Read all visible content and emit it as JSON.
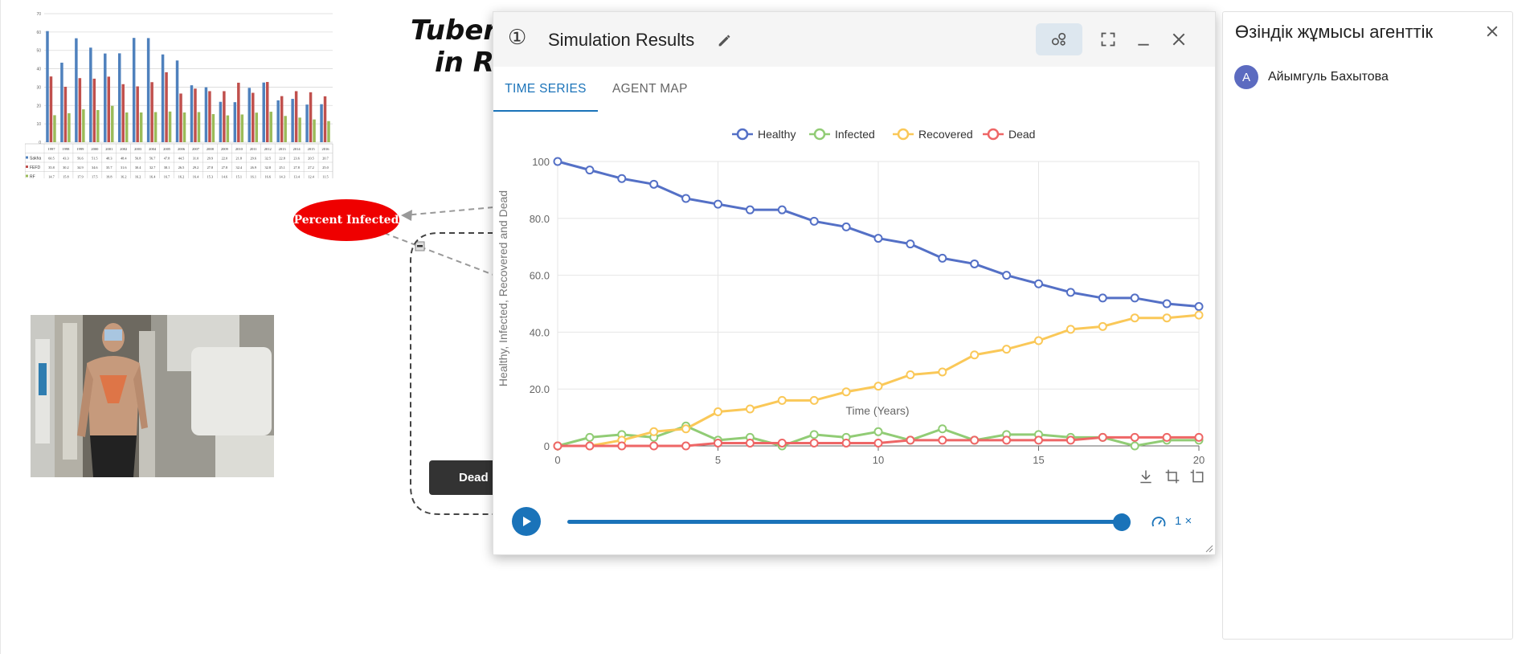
{
  "background": {
    "title_line1": "Tuberc",
    "title_line2": "in Ru",
    "percent_infected_node": "Percent Infected",
    "dead_node": "Dead",
    "mini_chart": {
      "y_ticks": [
        "70",
        "60",
        "50",
        "40",
        "30",
        "20",
        "10",
        "0"
      ],
      "years": [
        "1997",
        "1998",
        "1999",
        "2000",
        "2001",
        "2002",
        "2003",
        "2004",
        "2005",
        "2006",
        "2007",
        "2008",
        "2009",
        "2010",
        "2011",
        "2012",
        "2013",
        "2014",
        "2015",
        "2016"
      ],
      "series": [
        {
          "name": "Sakha",
          "color": "#4f81bd",
          "values": [
            60.5,
            43.3,
            56.6,
            51.5,
            48.3,
            48.4,
            56.8,
            56.7,
            47.8,
            44.5,
            31.0,
            29.9,
            22.0,
            21.8,
            29.6,
            32.5,
            22.8,
            23.6,
            20.5,
            20.7
          ]
        },
        {
          "name": "FEFD",
          "color": "#c0504d",
          "values": [
            35.8,
            30.2,
            34.9,
            34.6,
            35.7,
            31.6,
            30.4,
            32.7,
            38.1,
            26.5,
            29.2,
            27.8,
            27.8,
            32.4,
            26.9,
            32.8,
            25.1,
            27.8,
            27.2,
            25.0
          ]
        },
        {
          "name": "RF",
          "color": "#9bbb59",
          "values": [
            14.7,
            15.8,
            17.9,
            17.5,
            19.8,
            16.2,
            16.2,
            16.4,
            16.7,
            16.2,
            16.4,
            15.3,
            14.6,
            15.1,
            16.1,
            16.6,
            14.3,
            13.4,
            12.4,
            11.5
          ]
        }
      ]
    }
  },
  "sim_window": {
    "number": "①",
    "title": "Simulation Results",
    "tabs": [
      {
        "label": "TIME SERIES",
        "active": true
      },
      {
        "label": "AGENT MAP",
        "active": false
      }
    ],
    "speed_label": "1 ×",
    "playback_progress": 1.0
  },
  "chart_data": {
    "type": "line",
    "xlabel": "Time (Years)",
    "ylabel": "Healthy, Infected, Recovered and Dead",
    "xlim": [
      0,
      20
    ],
    "ylim": [
      0,
      100
    ],
    "x_ticks": [
      0,
      5,
      10,
      15,
      20
    ],
    "x_tick_labels": [
      "0",
      "5",
      "10",
      "15",
      "20"
    ],
    "y_ticks": [
      0,
      20,
      40,
      60,
      80,
      100
    ],
    "y_tick_labels": [
      "0",
      "20.0",
      "40.0",
      "60.0",
      "80.0",
      "100"
    ],
    "legend_position": "top",
    "grid": true,
    "x": [
      0,
      1,
      2,
      3,
      4,
      5,
      6,
      7,
      8,
      9,
      10,
      11,
      12,
      13,
      14,
      15,
      16,
      17,
      18,
      19,
      20
    ],
    "series": [
      {
        "name": "Healthy",
        "color": "#5470c6",
        "values": [
          100,
          97,
          94,
          92,
          87,
          85,
          83,
          83,
          79,
          77,
          73,
          71,
          66,
          64,
          60,
          57,
          54,
          52,
          52,
          50,
          49
        ]
      },
      {
        "name": "Infected",
        "color": "#91cc75",
        "values": [
          0,
          3,
          4,
          3,
          7,
          2,
          3,
          0,
          4,
          3,
          5,
          2,
          6,
          2,
          4,
          4,
          3,
          3,
          0,
          2,
          2
        ]
      },
      {
        "name": "Recovered",
        "color": "#fac858",
        "values": [
          0,
          0,
          2,
          5,
          6,
          12,
          13,
          16,
          16,
          19,
          21,
          25,
          26,
          32,
          34,
          37,
          41,
          42,
          45,
          45,
          46
        ]
      },
      {
        "name": "Dead",
        "color": "#ee6666",
        "values": [
          0,
          0,
          0,
          0,
          0,
          1,
          1,
          1,
          1,
          1,
          1,
          2,
          2,
          2,
          2,
          2,
          2,
          3,
          3,
          3,
          3
        ]
      }
    ]
  },
  "agent_panel": {
    "title": "Өзіндік жұмысы агенттік",
    "members": [
      {
        "initial": "А",
        "name": "Айымгуль Бахытова"
      }
    ]
  },
  "colors": {
    "accent": "#1a73b9",
    "node_red": "#ef0000",
    "avatar": "#5c6bc0"
  }
}
